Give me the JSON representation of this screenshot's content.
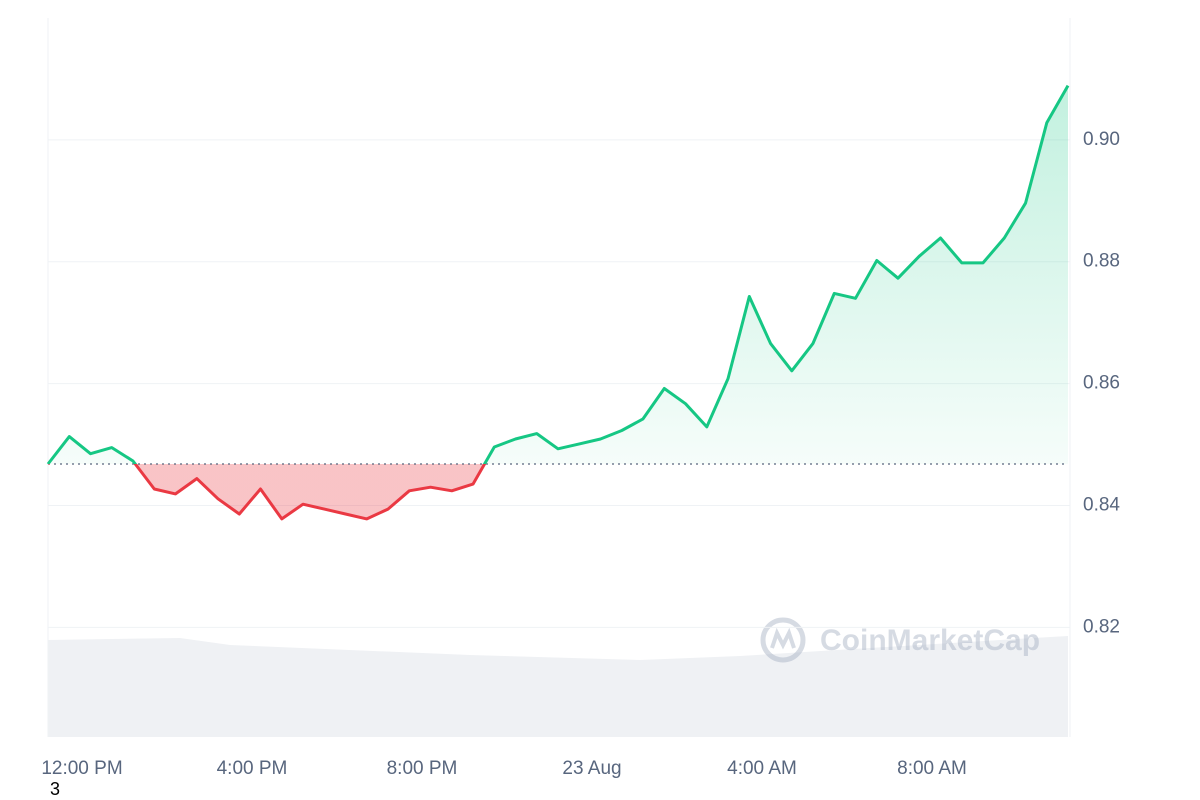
{
  "chart_data": {
    "type": "line",
    "watermark": "CoinMarketCap",
    "footnote": "3",
    "x": [
      -0.8,
      -0.3,
      0.2,
      0.7,
      1.2,
      1.7,
      2.2,
      2.7,
      3.2,
      3.7,
      4.2,
      4.7,
      5.2,
      5.7,
      6.2,
      6.7,
      7.2,
      7.7,
      8.2,
      8.7,
      9.2,
      9.7,
      10.2,
      10.7,
      11.2,
      11.7,
      12.2,
      12.7,
      13.2,
      13.7,
      14.2,
      14.7,
      15.2,
      15.7,
      16.2,
      16.7,
      17.2,
      17.7,
      18.2,
      18.7,
      19.2,
      19.7,
      20.2,
      20.7,
      21.2,
      21.7,
      22.2,
      22.7,
      23.2
    ],
    "values": [
      0.8468,
      0.8513,
      0.8485,
      0.8495,
      0.8473,
      0.8427,
      0.8419,
      0.8444,
      0.8411,
      0.8386,
      0.8427,
      0.8378,
      0.8402,
      0.8394,
      0.8386,
      0.8378,
      0.8394,
      0.8424,
      0.843,
      0.8424,
      0.8435,
      0.8496,
      0.8509,
      0.8518,
      0.8493,
      0.8501,
      0.8509,
      0.8523,
      0.8542,
      0.8592,
      0.8567,
      0.8529,
      0.8608,
      0.8743,
      0.8666,
      0.8621,
      0.8666,
      0.8748,
      0.874,
      0.8802,
      0.8773,
      0.8809,
      0.8839,
      0.8798,
      0.8798,
      0.8839,
      0.8896,
      0.9028,
      0.9089
    ],
    "color_up": "#16c784",
    "color_down": "#ea3943",
    "xlim": [
      -0.8,
      23.2
    ],
    "xticks": [
      {
        "value": 0,
        "label": "12:00 PM"
      },
      {
        "value": 4,
        "label": "4:00 PM"
      },
      {
        "value": 8,
        "label": "8:00 PM"
      },
      {
        "value": 12,
        "label": "23 Aug"
      },
      {
        "value": 16,
        "label": "4:00 AM"
      },
      {
        "value": 20,
        "label": "8:00 AM"
      }
    ],
    "ylim": [
      0.802,
      0.92
    ],
    "yticks": [
      {
        "value": 0.82,
        "label": "0.82"
      },
      {
        "value": 0.84,
        "label": "0.84"
      },
      {
        "value": 0.86,
        "label": "0.86"
      },
      {
        "value": 0.88,
        "label": "0.88"
      },
      {
        "value": 0.9,
        "label": "0.90"
      }
    ],
    "grid": true
  }
}
